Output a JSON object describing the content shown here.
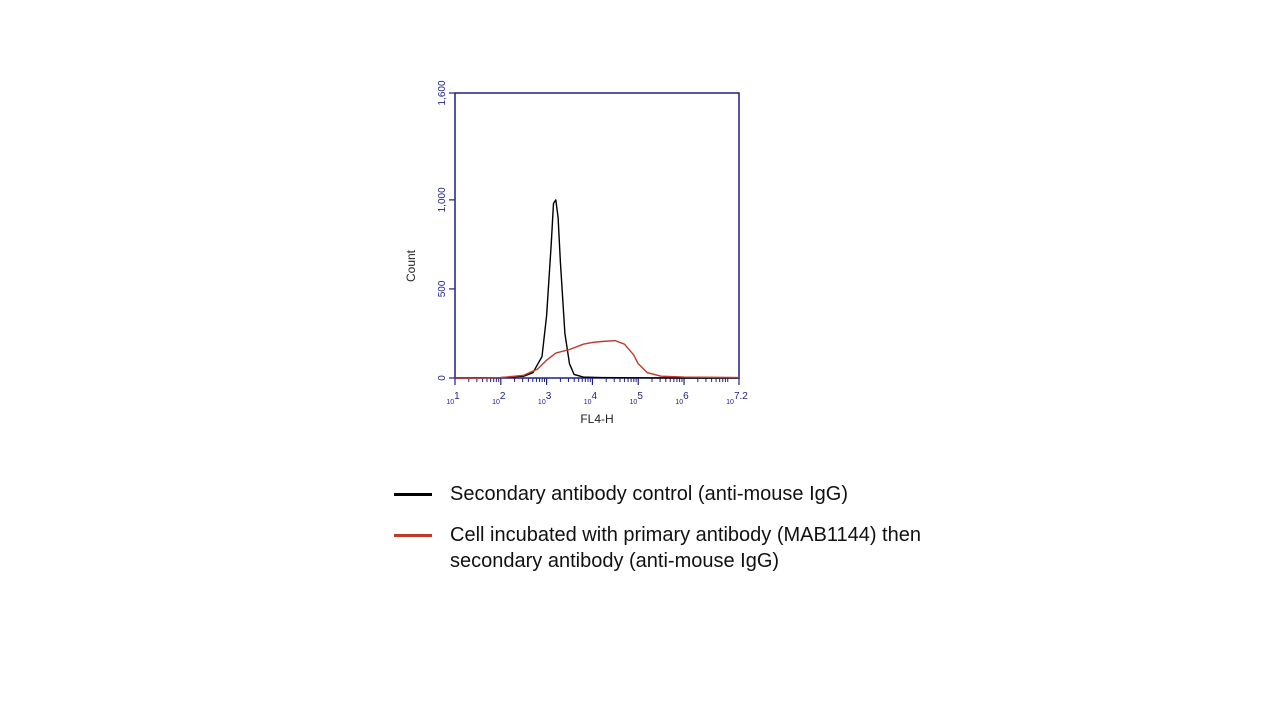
{
  "colors": {
    "axis": "#1e1e8c",
    "tick_label": "#1e1e8c",
    "secondary_control": "#000000",
    "primary_antibody": "#c0392b"
  },
  "chart_data": {
    "type": "line",
    "xlabel": "FL4-H",
    "ylabel": "Count",
    "x_scale": "log",
    "xlim_exponent": [
      1,
      7.2
    ],
    "ylim": [
      0,
      1600
    ],
    "y_ticks": [
      {
        "value": 0,
        "label": "0"
      },
      {
        "value": 500,
        "label": "500"
      },
      {
        "value": 1000,
        "label": "1,000"
      },
      {
        "value": 1600,
        "label": "1,600"
      }
    ],
    "x_ticks": [
      {
        "exp": 1,
        "base": "10",
        "sup": "1"
      },
      {
        "exp": 2,
        "base": "10",
        "sup": "2"
      },
      {
        "exp": 3,
        "base": "10",
        "sup": "3"
      },
      {
        "exp": 4,
        "base": "10",
        "sup": "4"
      },
      {
        "exp": 5,
        "base": "10",
        "sup": "5"
      },
      {
        "exp": 6,
        "base": "10",
        "sup": "6"
      },
      {
        "exp": 7.2,
        "base": "10",
        "sup": "7.2"
      }
    ],
    "grid": false,
    "series": [
      {
        "key": "secondary_control",
        "color": "#000000",
        "x_exponent": [
          1.0,
          2.0,
          2.5,
          2.7,
          2.9,
          3.0,
          3.1,
          3.15,
          3.2,
          3.25,
          3.3,
          3.4,
          3.5,
          3.6,
          3.8,
          4.2,
          5.0,
          6.0,
          7.2
        ],
        "y": [
          0,
          2,
          10,
          30,
          120,
          350,
          750,
          980,
          1000,
          900,
          650,
          250,
          80,
          20,
          5,
          2,
          1,
          0,
          0
        ]
      },
      {
        "key": "primary_antibody",
        "color": "#c0392b",
        "x_exponent": [
          1.0,
          1.5,
          2.0,
          2.5,
          2.8,
          3.0,
          3.2,
          3.5,
          3.8,
          4.0,
          4.2,
          4.5,
          4.7,
          4.9,
          5.0,
          5.2,
          5.5,
          6.0,
          7.0,
          7.2
        ],
        "y": [
          0,
          0,
          2,
          15,
          50,
          100,
          140,
          160,
          190,
          200,
          205,
          210,
          190,
          130,
          80,
          30,
          10,
          5,
          3,
          2
        ]
      }
    ]
  },
  "legend": {
    "items": [
      {
        "label": "Secondary antibody control (anti-mouse IgG)",
        "color": "#000000"
      },
      {
        "label": "Cell incubated with primary antibody (MAB1144) then secondary antibody (anti-mouse IgG)",
        "color": "#c0392b"
      }
    ]
  }
}
